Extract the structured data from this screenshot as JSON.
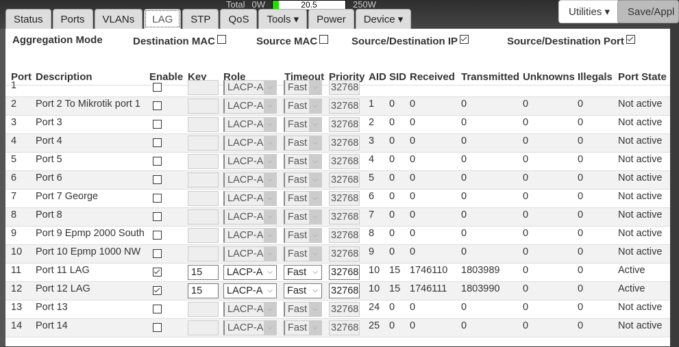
{
  "power": {
    "label": "Total",
    "min": "0W",
    "value": "20.5",
    "max": "250W",
    "fill_fraction": 0.082,
    "fill_color": "#22dd00"
  },
  "tabs": [
    "Status",
    "Ports",
    "VLANs",
    "LAG",
    "STP",
    "QoS",
    "Tools ▾",
    "Power",
    "Device ▾"
  ],
  "active_tab": "LAG",
  "buttons": {
    "utilities": "Utilities ▾",
    "save": "Save/Appl"
  },
  "aggregation": {
    "label": "Aggregation Mode",
    "options": [
      {
        "label": "Destination MAC",
        "checked": false
      },
      {
        "label": "Source MAC",
        "checked": false
      },
      {
        "label": "Source/Destination IP",
        "checked": true
      },
      {
        "label": "Source/Destination Port",
        "checked": true
      }
    ]
  },
  "columns": [
    "Port",
    "Description",
    "Enable",
    "Key",
    "Role",
    "Timeout",
    "Priority",
    "AID",
    "SID",
    "Received",
    "Transmitted",
    "Unknowns",
    "Illegals",
    "Port State"
  ],
  "rows": [
    {
      "port": "1",
      "desc": "",
      "enable": false,
      "key": "",
      "role": "LACP-A",
      "timeout": "Fast",
      "priority": "32768",
      "aid": "",
      "sid": "",
      "rx": "",
      "tx": "",
      "unk": "",
      "ill": "",
      "state": ""
    },
    {
      "port": "2",
      "desc": "Port 2 To Mikrotik port 1",
      "enable": false,
      "key": "",
      "role": "LACP-A",
      "timeout": "Fast",
      "priority": "32768",
      "aid": "1",
      "sid": "0",
      "rx": "0",
      "tx": "0",
      "unk": "0",
      "ill": "0",
      "state": "Not active"
    },
    {
      "port": "3",
      "desc": "Port 3",
      "enable": false,
      "key": "",
      "role": "LACP-A",
      "timeout": "Fast",
      "priority": "32768",
      "aid": "2",
      "sid": "0",
      "rx": "0",
      "tx": "0",
      "unk": "0",
      "ill": "0",
      "state": "Not active"
    },
    {
      "port": "4",
      "desc": "Port 4",
      "enable": false,
      "key": "",
      "role": "LACP-A",
      "timeout": "Fast",
      "priority": "32768",
      "aid": "3",
      "sid": "0",
      "rx": "0",
      "tx": "0",
      "unk": "0",
      "ill": "0",
      "state": "Not active"
    },
    {
      "port": "5",
      "desc": "Port 5",
      "enable": false,
      "key": "",
      "role": "LACP-A",
      "timeout": "Fast",
      "priority": "32768",
      "aid": "4",
      "sid": "0",
      "rx": "0",
      "tx": "0",
      "unk": "0",
      "ill": "0",
      "state": "Not active"
    },
    {
      "port": "6",
      "desc": "Port 6",
      "enable": false,
      "key": "",
      "role": "LACP-A",
      "timeout": "Fast",
      "priority": "32768",
      "aid": "5",
      "sid": "0",
      "rx": "0",
      "tx": "0",
      "unk": "0",
      "ill": "0",
      "state": "Not active"
    },
    {
      "port": "7",
      "desc": "Port 7 George",
      "enable": false,
      "key": "",
      "role": "LACP-A",
      "timeout": "Fast",
      "priority": "32768",
      "aid": "6",
      "sid": "0",
      "rx": "0",
      "tx": "0",
      "unk": "0",
      "ill": "0",
      "state": "Not active"
    },
    {
      "port": "8",
      "desc": "Port 8",
      "enable": false,
      "key": "",
      "role": "LACP-A",
      "timeout": "Fast",
      "priority": "32768",
      "aid": "7",
      "sid": "0",
      "rx": "0",
      "tx": "0",
      "unk": "0",
      "ill": "0",
      "state": "Not active"
    },
    {
      "port": "9",
      "desc": "Port 9 Epmp 2000 South",
      "enable": false,
      "key": "",
      "role": "LACP-A",
      "timeout": "Fast",
      "priority": "32768",
      "aid": "8",
      "sid": "0",
      "rx": "0",
      "tx": "0",
      "unk": "0",
      "ill": "0",
      "state": "Not active"
    },
    {
      "port": "10",
      "desc": "Port 10 Epmp 1000 NW",
      "enable": false,
      "key": "",
      "role": "LACP-A",
      "timeout": "Fast",
      "priority": "32768",
      "aid": "9",
      "sid": "0",
      "rx": "0",
      "tx": "0",
      "unk": "0",
      "ill": "0",
      "state": "Not active"
    },
    {
      "port": "11",
      "desc": "Port 11 LAG",
      "enable": true,
      "key": "15",
      "role": "LACP-A",
      "timeout": "Fast",
      "priority": "32768",
      "aid": "10",
      "sid": "15",
      "rx": "1746110",
      "tx": "1803989",
      "unk": "0",
      "ill": "0",
      "state": "Active"
    },
    {
      "port": "12",
      "desc": "Port 12 LAG",
      "enable": true,
      "key": "15",
      "role": "LACP-A",
      "timeout": "Fast",
      "priority": "32768",
      "aid": "10",
      "sid": "15",
      "rx": "1746111",
      "tx": "1803990",
      "unk": "0",
      "ill": "0",
      "state": "Active"
    },
    {
      "port": "13",
      "desc": "Port 13",
      "enable": false,
      "key": "",
      "role": "LACP-A",
      "timeout": "Fast",
      "priority": "32768",
      "aid": "24",
      "sid": "0",
      "rx": "0",
      "tx": "0",
      "unk": "0",
      "ill": "0",
      "state": "Not active"
    },
    {
      "port": "14",
      "desc": "Port 14",
      "enable": false,
      "key": "",
      "role": "LACP-A",
      "timeout": "Fast",
      "priority": "32768",
      "aid": "25",
      "sid": "0",
      "rx": "0",
      "tx": "0",
      "unk": "0",
      "ill": "0",
      "state": "Not active"
    }
  ]
}
